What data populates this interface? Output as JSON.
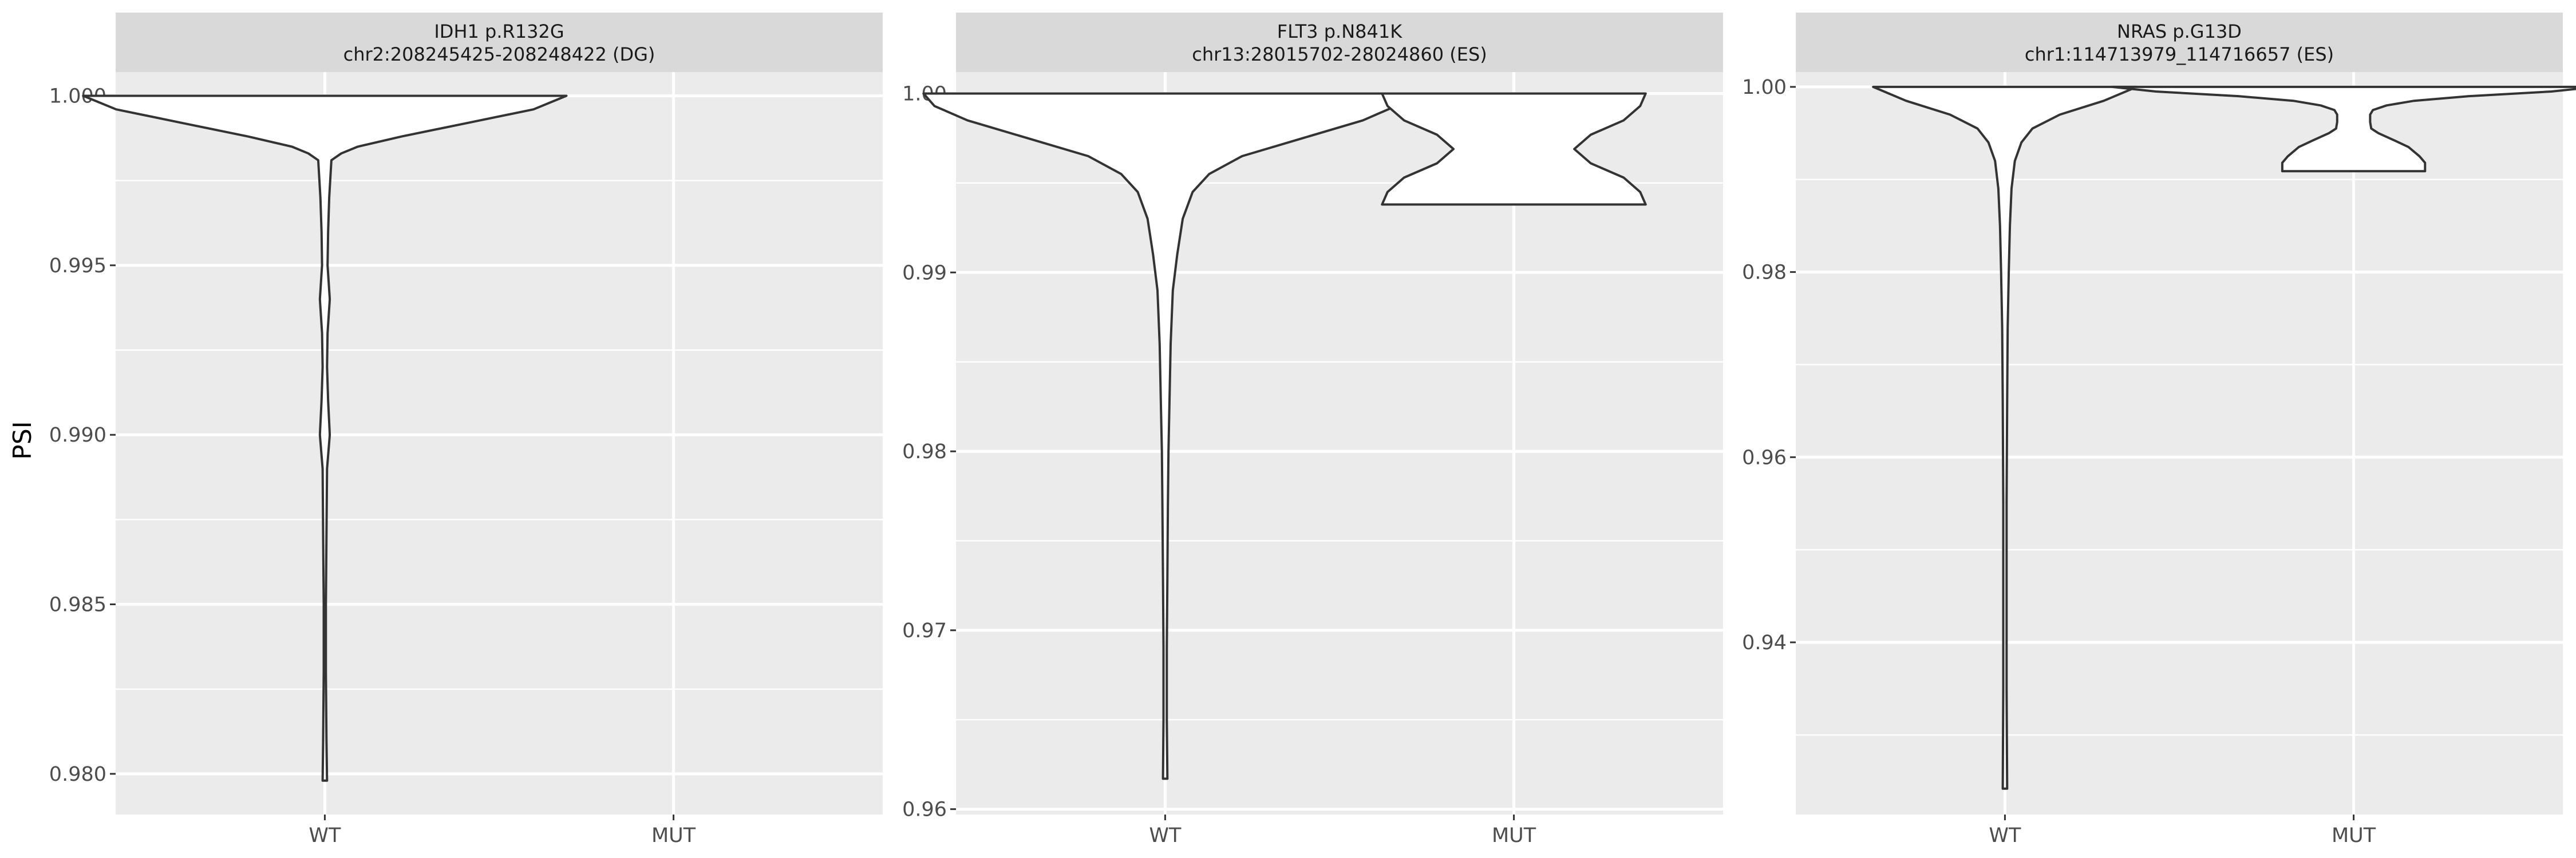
{
  "chart_data": {
    "type": "violin",
    "ylabel": "PSI",
    "panels": [
      {
        "strip_line1": "IDH1 p.R132G",
        "strip_line2": "chr2:208245425-208248422 (DG)",
        "categories": [
          "WT",
          "MUT"
        ],
        "ylim": [
          0.9788,
          1.0007
        ],
        "yticks": [
          0.98,
          0.985,
          0.99,
          0.995,
          1.0
        ],
        "ytick_labels": [
          "0.980",
          "0.985",
          "0.990",
          "0.995",
          "1.000"
        ],
        "violins": [
          {
            "category": "WT",
            "profile": [
              [
                1.0,
                0.44
              ],
              [
                0.9996,
                0.38
              ],
              [
                0.9992,
                0.26
              ],
              [
                0.9988,
                0.14
              ],
              [
                0.9985,
                0.06
              ],
              [
                0.9983,
                0.03
              ],
              [
                0.9981,
                0.012
              ],
              [
                0.997,
                0.008
              ],
              [
                0.996,
                0.006
              ],
              [
                0.995,
                0.005
              ],
              [
                0.994,
                0.009
              ],
              [
                0.993,
                0.005
              ],
              [
                0.992,
                0.004
              ],
              [
                0.991,
                0.006
              ],
              [
                0.99,
                0.009
              ],
              [
                0.989,
                0.004
              ],
              [
                0.987,
                0.003
              ],
              [
                0.985,
                0.002
              ],
              [
                0.983,
                0.002
              ],
              [
                0.981,
                0.003
              ],
              [
                0.9798,
                0.004
              ]
            ]
          }
        ]
      },
      {
        "strip_line1": "FLT3 p.N841K",
        "strip_line2": "chr13:28015702-28024860 (ES)",
        "categories": [
          "WT",
          "MUT"
        ],
        "ylim": [
          0.9597,
          1.0012
        ],
        "yticks": [
          0.96,
          0.97,
          0.98,
          0.99,
          1.0
        ],
        "ytick_labels": [
          "0.96",
          "0.97",
          "0.98",
          "0.99",
          "1.00"
        ],
        "violins": [
          {
            "category": "WT",
            "profile": [
              [
                1.0,
                0.44
              ],
              [
                0.9993,
                0.42
              ],
              [
                0.9985,
                0.36
              ],
              [
                0.9975,
                0.25
              ],
              [
                0.9965,
                0.14
              ],
              [
                0.9955,
                0.08
              ],
              [
                0.9945,
                0.05
              ],
              [
                0.993,
                0.032
              ],
              [
                0.991,
                0.022
              ],
              [
                0.989,
                0.014
              ],
              [
                0.986,
                0.01
              ],
              [
                0.983,
                0.008
              ],
              [
                0.98,
                0.006
              ],
              [
                0.977,
                0.005
              ],
              [
                0.973,
                0.004
              ],
              [
                0.969,
                0.003
              ],
              [
                0.965,
                0.003
              ],
              [
                0.9617,
                0.004
              ]
            ]
          },
          {
            "category": "MUT",
            "profile": [
              [
                1.0,
                0.24
              ],
              [
                0.9993,
                0.23
              ],
              [
                0.9985,
                0.2
              ],
              [
                0.9977,
                0.14
              ],
              [
                0.9969,
                0.11
              ],
              [
                0.9961,
                0.14
              ],
              [
                0.9953,
                0.2
              ],
              [
                0.9945,
                0.23
              ],
              [
                0.9938,
                0.24
              ]
            ]
          }
        ]
      },
      {
        "strip_line1": "NRAS p.G13D",
        "strip_line2": "chr1:114713979_114716657 (ES)",
        "categories": [
          "WT",
          "MUT"
        ],
        "ylim": [
          0.9214,
          1.0016
        ],
        "yticks": [
          0.94,
          0.96,
          0.98,
          1.0
        ],
        "ytick_labels": [
          "0.94",
          "0.96",
          "0.98",
          "1.00"
        ],
        "violins": [
          {
            "category": "WT",
            "profile": [
              [
                1.0,
                0.24
              ],
              [
                0.9985,
                0.18
              ],
              [
                0.997,
                0.1
              ],
              [
                0.9955,
                0.05
              ],
              [
                0.994,
                0.03
              ],
              [
                0.992,
                0.018
              ],
              [
                0.989,
                0.012
              ],
              [
                0.985,
                0.009
              ],
              [
                0.98,
                0.007
              ],
              [
                0.974,
                0.005
              ],
              [
                0.966,
                0.004
              ],
              [
                0.955,
                0.003
              ],
              [
                0.945,
                0.003
              ],
              [
                0.935,
                0.003
              ],
              [
                0.9242,
                0.004
              ]
            ]
          },
          {
            "category": "MUT",
            "profile": [
              [
                1.0,
                0.44
              ],
              [
                0.9995,
                0.36
              ],
              [
                0.999,
                0.21
              ],
              [
                0.9985,
                0.11
              ],
              [
                0.998,
                0.06
              ],
              [
                0.9975,
                0.035
              ],
              [
                0.997,
                0.03
              ],
              [
                0.9962,
                0.03
              ],
              [
                0.9955,
                0.032
              ],
              [
                0.995,
                0.045
              ],
              [
                0.9942,
                0.075
              ],
              [
                0.9935,
                0.1
              ],
              [
                0.9925,
                0.12
              ],
              [
                0.9918,
                0.13
              ],
              [
                0.9909,
                0.13
              ]
            ]
          }
        ]
      }
    ]
  }
}
